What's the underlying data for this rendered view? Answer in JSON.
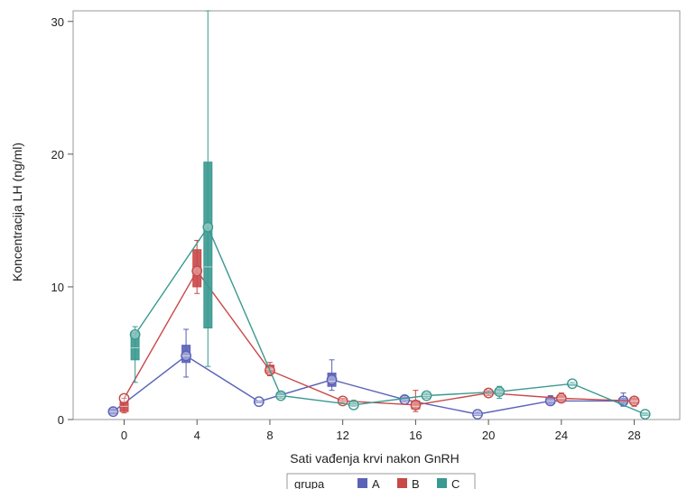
{
  "chart_data": {
    "type": "box-line",
    "title": "",
    "xlabel": "Sati vađenja krvi nakon GnRH",
    "ylabel": "Koncentracija LH (ng/ml)",
    "xlim": [
      -2.8,
      30.5
    ],
    "ylim": [
      0,
      30.8
    ],
    "xticks": [
      0,
      4,
      8,
      12,
      16,
      20,
      24,
      28
    ],
    "yticks": [
      0,
      10,
      20,
      30
    ],
    "grid": false,
    "legend": {
      "title": "grupa",
      "position": "bottom-center"
    },
    "series": [
      {
        "name": "A",
        "color": "#5a62b8",
        "offset": -0.6,
        "points": [
          {
            "x": 0,
            "min": 0.4,
            "q1": 0.45,
            "median": 0.6,
            "q3": 0.8,
            "max": 0.9,
            "mean": 0.6
          },
          {
            "x": 4,
            "min": 3.2,
            "q1": 4.3,
            "median": 4.8,
            "q3": 5.6,
            "max": 6.8,
            "mean": 4.8
          },
          {
            "x": 8,
            "min": 1.3,
            "q1": 1.3,
            "median": 1.35,
            "q3": 1.4,
            "max": 1.4,
            "mean": 1.35
          },
          {
            "x": 12,
            "min": 2.2,
            "q1": 2.5,
            "median": 2.9,
            "q3": 3.5,
            "max": 4.5,
            "mean": 3.0
          },
          {
            "x": 16,
            "min": 1.3,
            "q1": 1.4,
            "median": 1.5,
            "q3": 1.7,
            "max": 1.8,
            "mean": 1.5
          },
          {
            "x": 20,
            "min": 0.3,
            "q1": 0.3,
            "median": 0.4,
            "q3": 0.5,
            "max": 0.6,
            "mean": 0.4
          },
          {
            "x": 24,
            "min": 1.1,
            "q1": 1.2,
            "median": 1.4,
            "q3": 1.6,
            "max": 1.8,
            "mean": 1.4
          },
          {
            "x": 28,
            "min": 1.0,
            "q1": 1.2,
            "median": 1.4,
            "q3": 1.6,
            "max": 2.0,
            "mean": 1.4
          }
        ]
      },
      {
        "name": "B",
        "color": "#c94848",
        "offset": 0.0,
        "points": [
          {
            "x": 0,
            "min": 0.5,
            "q1": 0.6,
            "median": 1.0,
            "q3": 1.3,
            "max": 1.6,
            "mean": 1.6
          },
          {
            "x": 4,
            "min": 9.5,
            "q1": 10.0,
            "median": 10.9,
            "q3": 12.8,
            "max": 13.5,
            "mean": 11.2
          },
          {
            "x": 8,
            "min": 3.3,
            "q1": 3.5,
            "median": 3.8,
            "q3": 4.1,
            "max": 4.3,
            "mean": 3.7
          },
          {
            "x": 12,
            "min": 1.3,
            "q1": 1.35,
            "median": 1.4,
            "q3": 1.5,
            "max": 1.6,
            "mean": 1.4
          },
          {
            "x": 16,
            "min": 0.6,
            "q1": 0.8,
            "median": 1.0,
            "q3": 1.4,
            "max": 2.2,
            "mean": 1.1
          },
          {
            "x": 20,
            "min": 1.8,
            "q1": 1.9,
            "median": 2.0,
            "q3": 2.1,
            "max": 2.2,
            "mean": 2.0
          },
          {
            "x": 24,
            "min": 1.3,
            "q1": 1.4,
            "median": 1.6,
            "q3": 1.8,
            "max": 2.0,
            "mean": 1.6
          },
          {
            "x": 28,
            "min": 1.0,
            "q1": 1.2,
            "median": 1.4,
            "q3": 1.6,
            "max": 1.7,
            "mean": 1.4
          }
        ]
      },
      {
        "name": "C",
        "color": "#3a9990",
        "offset": 0.6,
        "points": [
          {
            "x": 0,
            "min": 2.8,
            "q1": 4.5,
            "median": 5.4,
            "q3": 6.6,
            "max": 7.0,
            "mean": 6.4
          },
          {
            "x": 4,
            "min": 4.0,
            "q1": 6.9,
            "median": 11.5,
            "q3": 19.4,
            "max": 30.8,
            "mean": 14.5
          },
          {
            "x": 8,
            "min": 1.6,
            "q1": 1.7,
            "median": 1.8,
            "q3": 2.0,
            "max": 2.1,
            "mean": 1.8
          },
          {
            "x": 12,
            "min": 1.0,
            "q1": 1.05,
            "median": 1.1,
            "q3": 1.2,
            "max": 1.3,
            "mean": 1.1
          },
          {
            "x": 16,
            "min": 1.6,
            "q1": 1.7,
            "median": 1.8,
            "q3": 1.9,
            "max": 2.0,
            "mean": 1.8
          },
          {
            "x": 20,
            "min": 1.6,
            "q1": 1.9,
            "median": 2.1,
            "q3": 2.3,
            "max": 2.5,
            "mean": 2.1
          },
          {
            "x": 24,
            "min": 2.6,
            "q1": 2.6,
            "median": 2.7,
            "q3": 2.7,
            "max": 2.8,
            "mean": 2.7
          },
          {
            "x": 28,
            "min": 0.3,
            "q1": 0.35,
            "median": 0.4,
            "q3": 0.45,
            "max": 0.5,
            "mean": 0.4
          }
        ]
      }
    ]
  }
}
